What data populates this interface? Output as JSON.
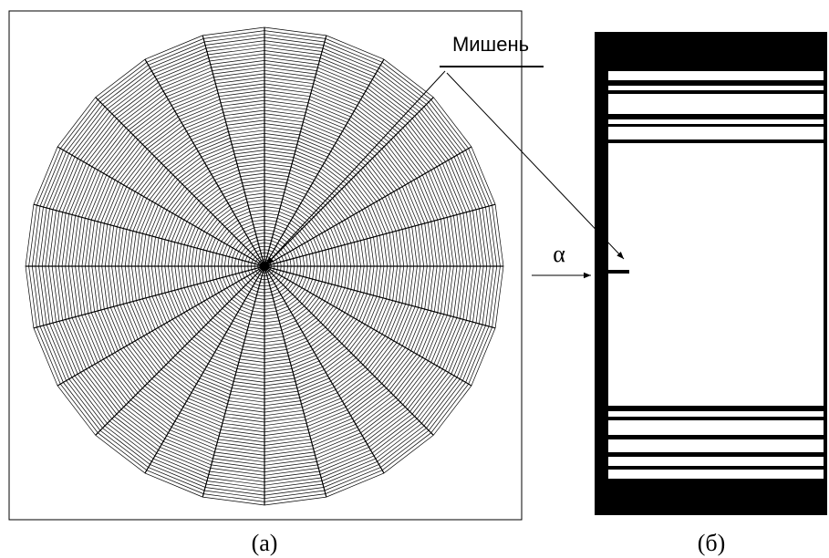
{
  "labels": {
    "target": "Мишень",
    "angle": "α",
    "panel_a": "(а)",
    "panel_b": "(б)"
  }
}
